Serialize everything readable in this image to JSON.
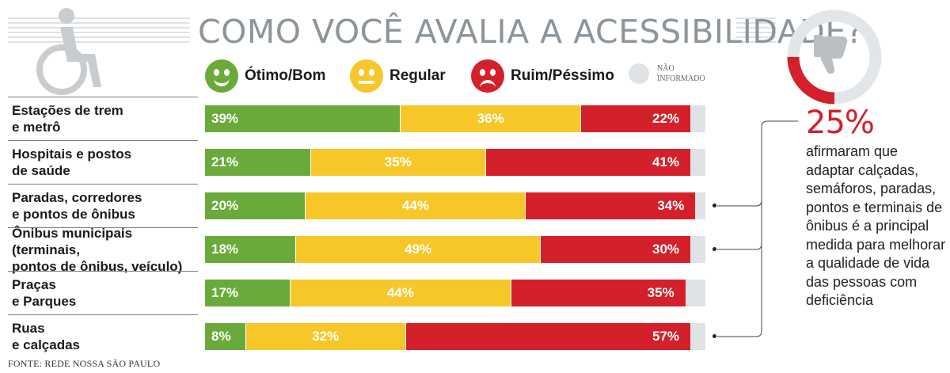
{
  "title": "COMO VOCÊ AVALIA A ACESSIBILIDADE?",
  "legend": {
    "good": "Ótimo/Bom",
    "regular": "Regular",
    "bad": "Ruim/Péssimo",
    "not_informed": "NÃO INFORMADO"
  },
  "icons": {
    "wheelchair": "wheelchair-icon",
    "thumbs_down": "thumbs-down-icon",
    "faces": [
      "happy-face-icon",
      "neutral-face-icon",
      "sad-face-icon"
    ]
  },
  "colors": {
    "good": "#6aaa3a",
    "regular": "#f7c72a",
    "bad": "#d4202a",
    "not_informed": "#dfe3e5",
    "title": "#8c959b"
  },
  "chart_data": {
    "type": "bar",
    "orientation": "horizontal",
    "stacked": true,
    "title": "COMO VOCÊ AVALIA A ACESSIBILIDADE?",
    "categories": [
      "Estações de trem e metrô",
      "Hospitais e postos de saúde",
      "Paradas, corredores e pontos de ônibus",
      "Ônibus municipais (terminais, pontos de ônibus, veículo)",
      "Praças e Parques",
      "Ruas e calçadas"
    ],
    "series": [
      {
        "name": "Ótimo/Bom",
        "values": [
          39,
          21,
          20,
          18,
          17,
          8
        ]
      },
      {
        "name": "Regular",
        "values": [
          36,
          35,
          44,
          49,
          44,
          32
        ]
      },
      {
        "name": "Ruim/Péssimo",
        "values": [
          22,
          41,
          34,
          30,
          35,
          57
        ]
      },
      {
        "name": "Não informado",
        "values": [
          3,
          3,
          2,
          3,
          4,
          3
        ]
      }
    ],
    "value_suffix": "%",
    "xlim": [
      0,
      100
    ]
  },
  "rows": [
    {
      "label_line1": "Estações de trem",
      "label_line2": "e metrô",
      "good": "39%",
      "regular": "36%",
      "bad": "22%"
    },
    {
      "label_line1": "Hospitais e postos",
      "label_line2": "de saúde",
      "good": "21%",
      "regular": "35%",
      "bad": "41%"
    },
    {
      "label_line1": "Paradas, corredores",
      "label_line2": "e pontos de ônibus",
      "good": "20%",
      "regular": "44%",
      "bad": "34%"
    },
    {
      "label_line1": "Ônibus municipais (terminais,",
      "label_line2": "pontos de ônibus, veículo)",
      "good": "18%",
      "regular": "49%",
      "bad": "30%"
    },
    {
      "label_line1": "Praças",
      "label_line2": "e Parques",
      "good": "17%",
      "regular": "44%",
      "bad": "35%"
    },
    {
      "label_line1": "Ruas",
      "label_line2": "e calçadas",
      "good": "8%",
      "regular": "32%",
      "bad": "57%"
    }
  ],
  "stat": {
    "value": 25,
    "number": "25%",
    "text": "afirmaram que adaptar calçadas, semáforos, paradas, pontos e terminais de ônibus é a principal medida para melhorar a qualidade de vida das pessoas com deficiência"
  },
  "source": "FONTE: REDE NOSSA SÃO PAULO"
}
